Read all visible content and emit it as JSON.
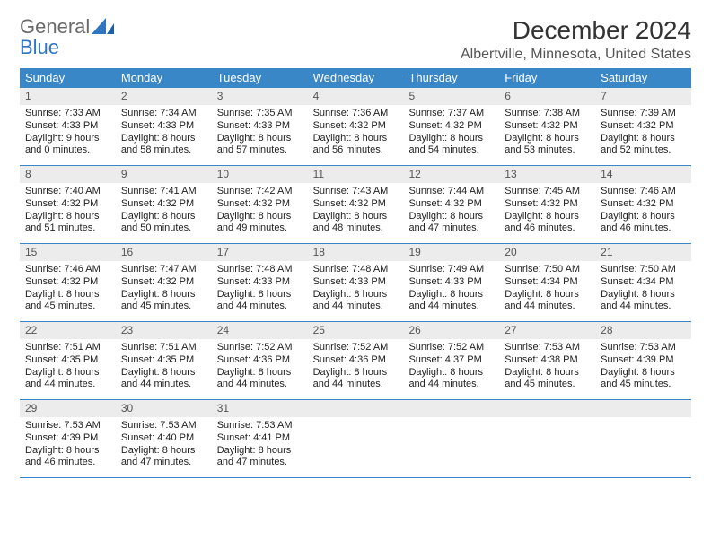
{
  "logo": {
    "text1": "General",
    "text2": "Blue",
    "color1": "#6b6b6b",
    "color2": "#2f75c0"
  },
  "title": "December 2024",
  "location": "Albertville, Minnesota, United States",
  "colors": {
    "header_bg": "#3a87c8",
    "header_text": "#ffffff",
    "daynum_bg": "#ececec",
    "border": "#3a87c8",
    "body_text": "#222222"
  },
  "dow": [
    "Sunday",
    "Monday",
    "Tuesday",
    "Wednesday",
    "Thursday",
    "Friday",
    "Saturday"
  ],
  "weeks": [
    [
      {
        "n": "1",
        "sr": "Sunrise: 7:33 AM",
        "ss": "Sunset: 4:33 PM",
        "dl": "Daylight: 9 hours and 0 minutes."
      },
      {
        "n": "2",
        "sr": "Sunrise: 7:34 AM",
        "ss": "Sunset: 4:33 PM",
        "dl": "Daylight: 8 hours and 58 minutes."
      },
      {
        "n": "3",
        "sr": "Sunrise: 7:35 AM",
        "ss": "Sunset: 4:33 PM",
        "dl": "Daylight: 8 hours and 57 minutes."
      },
      {
        "n": "4",
        "sr": "Sunrise: 7:36 AM",
        "ss": "Sunset: 4:32 PM",
        "dl": "Daylight: 8 hours and 56 minutes."
      },
      {
        "n": "5",
        "sr": "Sunrise: 7:37 AM",
        "ss": "Sunset: 4:32 PM",
        "dl": "Daylight: 8 hours and 54 minutes."
      },
      {
        "n": "6",
        "sr": "Sunrise: 7:38 AM",
        "ss": "Sunset: 4:32 PM",
        "dl": "Daylight: 8 hours and 53 minutes."
      },
      {
        "n": "7",
        "sr": "Sunrise: 7:39 AM",
        "ss": "Sunset: 4:32 PM",
        "dl": "Daylight: 8 hours and 52 minutes."
      }
    ],
    [
      {
        "n": "8",
        "sr": "Sunrise: 7:40 AM",
        "ss": "Sunset: 4:32 PM",
        "dl": "Daylight: 8 hours and 51 minutes."
      },
      {
        "n": "9",
        "sr": "Sunrise: 7:41 AM",
        "ss": "Sunset: 4:32 PM",
        "dl": "Daylight: 8 hours and 50 minutes."
      },
      {
        "n": "10",
        "sr": "Sunrise: 7:42 AM",
        "ss": "Sunset: 4:32 PM",
        "dl": "Daylight: 8 hours and 49 minutes."
      },
      {
        "n": "11",
        "sr": "Sunrise: 7:43 AM",
        "ss": "Sunset: 4:32 PM",
        "dl": "Daylight: 8 hours and 48 minutes."
      },
      {
        "n": "12",
        "sr": "Sunrise: 7:44 AM",
        "ss": "Sunset: 4:32 PM",
        "dl": "Daylight: 8 hours and 47 minutes."
      },
      {
        "n": "13",
        "sr": "Sunrise: 7:45 AM",
        "ss": "Sunset: 4:32 PM",
        "dl": "Daylight: 8 hours and 46 minutes."
      },
      {
        "n": "14",
        "sr": "Sunrise: 7:46 AM",
        "ss": "Sunset: 4:32 PM",
        "dl": "Daylight: 8 hours and 46 minutes."
      }
    ],
    [
      {
        "n": "15",
        "sr": "Sunrise: 7:46 AM",
        "ss": "Sunset: 4:32 PM",
        "dl": "Daylight: 8 hours and 45 minutes."
      },
      {
        "n": "16",
        "sr": "Sunrise: 7:47 AM",
        "ss": "Sunset: 4:32 PM",
        "dl": "Daylight: 8 hours and 45 minutes."
      },
      {
        "n": "17",
        "sr": "Sunrise: 7:48 AM",
        "ss": "Sunset: 4:33 PM",
        "dl": "Daylight: 8 hours and 44 minutes."
      },
      {
        "n": "18",
        "sr": "Sunrise: 7:48 AM",
        "ss": "Sunset: 4:33 PM",
        "dl": "Daylight: 8 hours and 44 minutes."
      },
      {
        "n": "19",
        "sr": "Sunrise: 7:49 AM",
        "ss": "Sunset: 4:33 PM",
        "dl": "Daylight: 8 hours and 44 minutes."
      },
      {
        "n": "20",
        "sr": "Sunrise: 7:50 AM",
        "ss": "Sunset: 4:34 PM",
        "dl": "Daylight: 8 hours and 44 minutes."
      },
      {
        "n": "21",
        "sr": "Sunrise: 7:50 AM",
        "ss": "Sunset: 4:34 PM",
        "dl": "Daylight: 8 hours and 44 minutes."
      }
    ],
    [
      {
        "n": "22",
        "sr": "Sunrise: 7:51 AM",
        "ss": "Sunset: 4:35 PM",
        "dl": "Daylight: 8 hours and 44 minutes."
      },
      {
        "n": "23",
        "sr": "Sunrise: 7:51 AM",
        "ss": "Sunset: 4:35 PM",
        "dl": "Daylight: 8 hours and 44 minutes."
      },
      {
        "n": "24",
        "sr": "Sunrise: 7:52 AM",
        "ss": "Sunset: 4:36 PM",
        "dl": "Daylight: 8 hours and 44 minutes."
      },
      {
        "n": "25",
        "sr": "Sunrise: 7:52 AM",
        "ss": "Sunset: 4:36 PM",
        "dl": "Daylight: 8 hours and 44 minutes."
      },
      {
        "n": "26",
        "sr": "Sunrise: 7:52 AM",
        "ss": "Sunset: 4:37 PM",
        "dl": "Daylight: 8 hours and 44 minutes."
      },
      {
        "n": "27",
        "sr": "Sunrise: 7:53 AM",
        "ss": "Sunset: 4:38 PM",
        "dl": "Daylight: 8 hours and 45 minutes."
      },
      {
        "n": "28",
        "sr": "Sunrise: 7:53 AM",
        "ss": "Sunset: 4:39 PM",
        "dl": "Daylight: 8 hours and 45 minutes."
      }
    ],
    [
      {
        "n": "29",
        "sr": "Sunrise: 7:53 AM",
        "ss": "Sunset: 4:39 PM",
        "dl": "Daylight: 8 hours and 46 minutes."
      },
      {
        "n": "30",
        "sr": "Sunrise: 7:53 AM",
        "ss": "Sunset: 4:40 PM",
        "dl": "Daylight: 8 hours and 47 minutes."
      },
      {
        "n": "31",
        "sr": "Sunrise: 7:53 AM",
        "ss": "Sunset: 4:41 PM",
        "dl": "Daylight: 8 hours and 47 minutes."
      },
      {
        "empty": true
      },
      {
        "empty": true
      },
      {
        "empty": true
      },
      {
        "empty": true
      }
    ]
  ]
}
